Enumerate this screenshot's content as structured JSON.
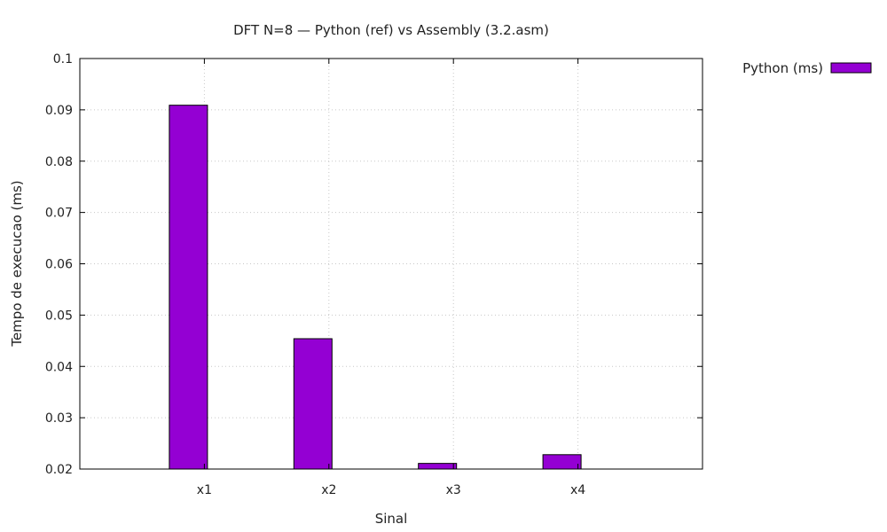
{
  "chart_data": {
    "type": "bar",
    "title": "DFT N=8 — Python (ref) vs Assembly (3.2.asm)",
    "xlabel": "Sinal",
    "ylabel": "Tempo de execucao (ms)",
    "categories": [
      "x1",
      "x2",
      "x3",
      "x4"
    ],
    "series": [
      {
        "name": "Python (ms)",
        "values": [
          0.0909,
          0.0454,
          0.0211,
          0.0228
        ],
        "color": "#9400d3"
      }
    ],
    "ylim": [
      0.02,
      0.1
    ],
    "yticks": [
      "0.02",
      "0.03",
      "0.04",
      "0.05",
      "0.06",
      "0.07",
      "0.08",
      "0.09",
      "0.1"
    ],
    "grid": true,
    "legend": "top-right, outside plot"
  }
}
